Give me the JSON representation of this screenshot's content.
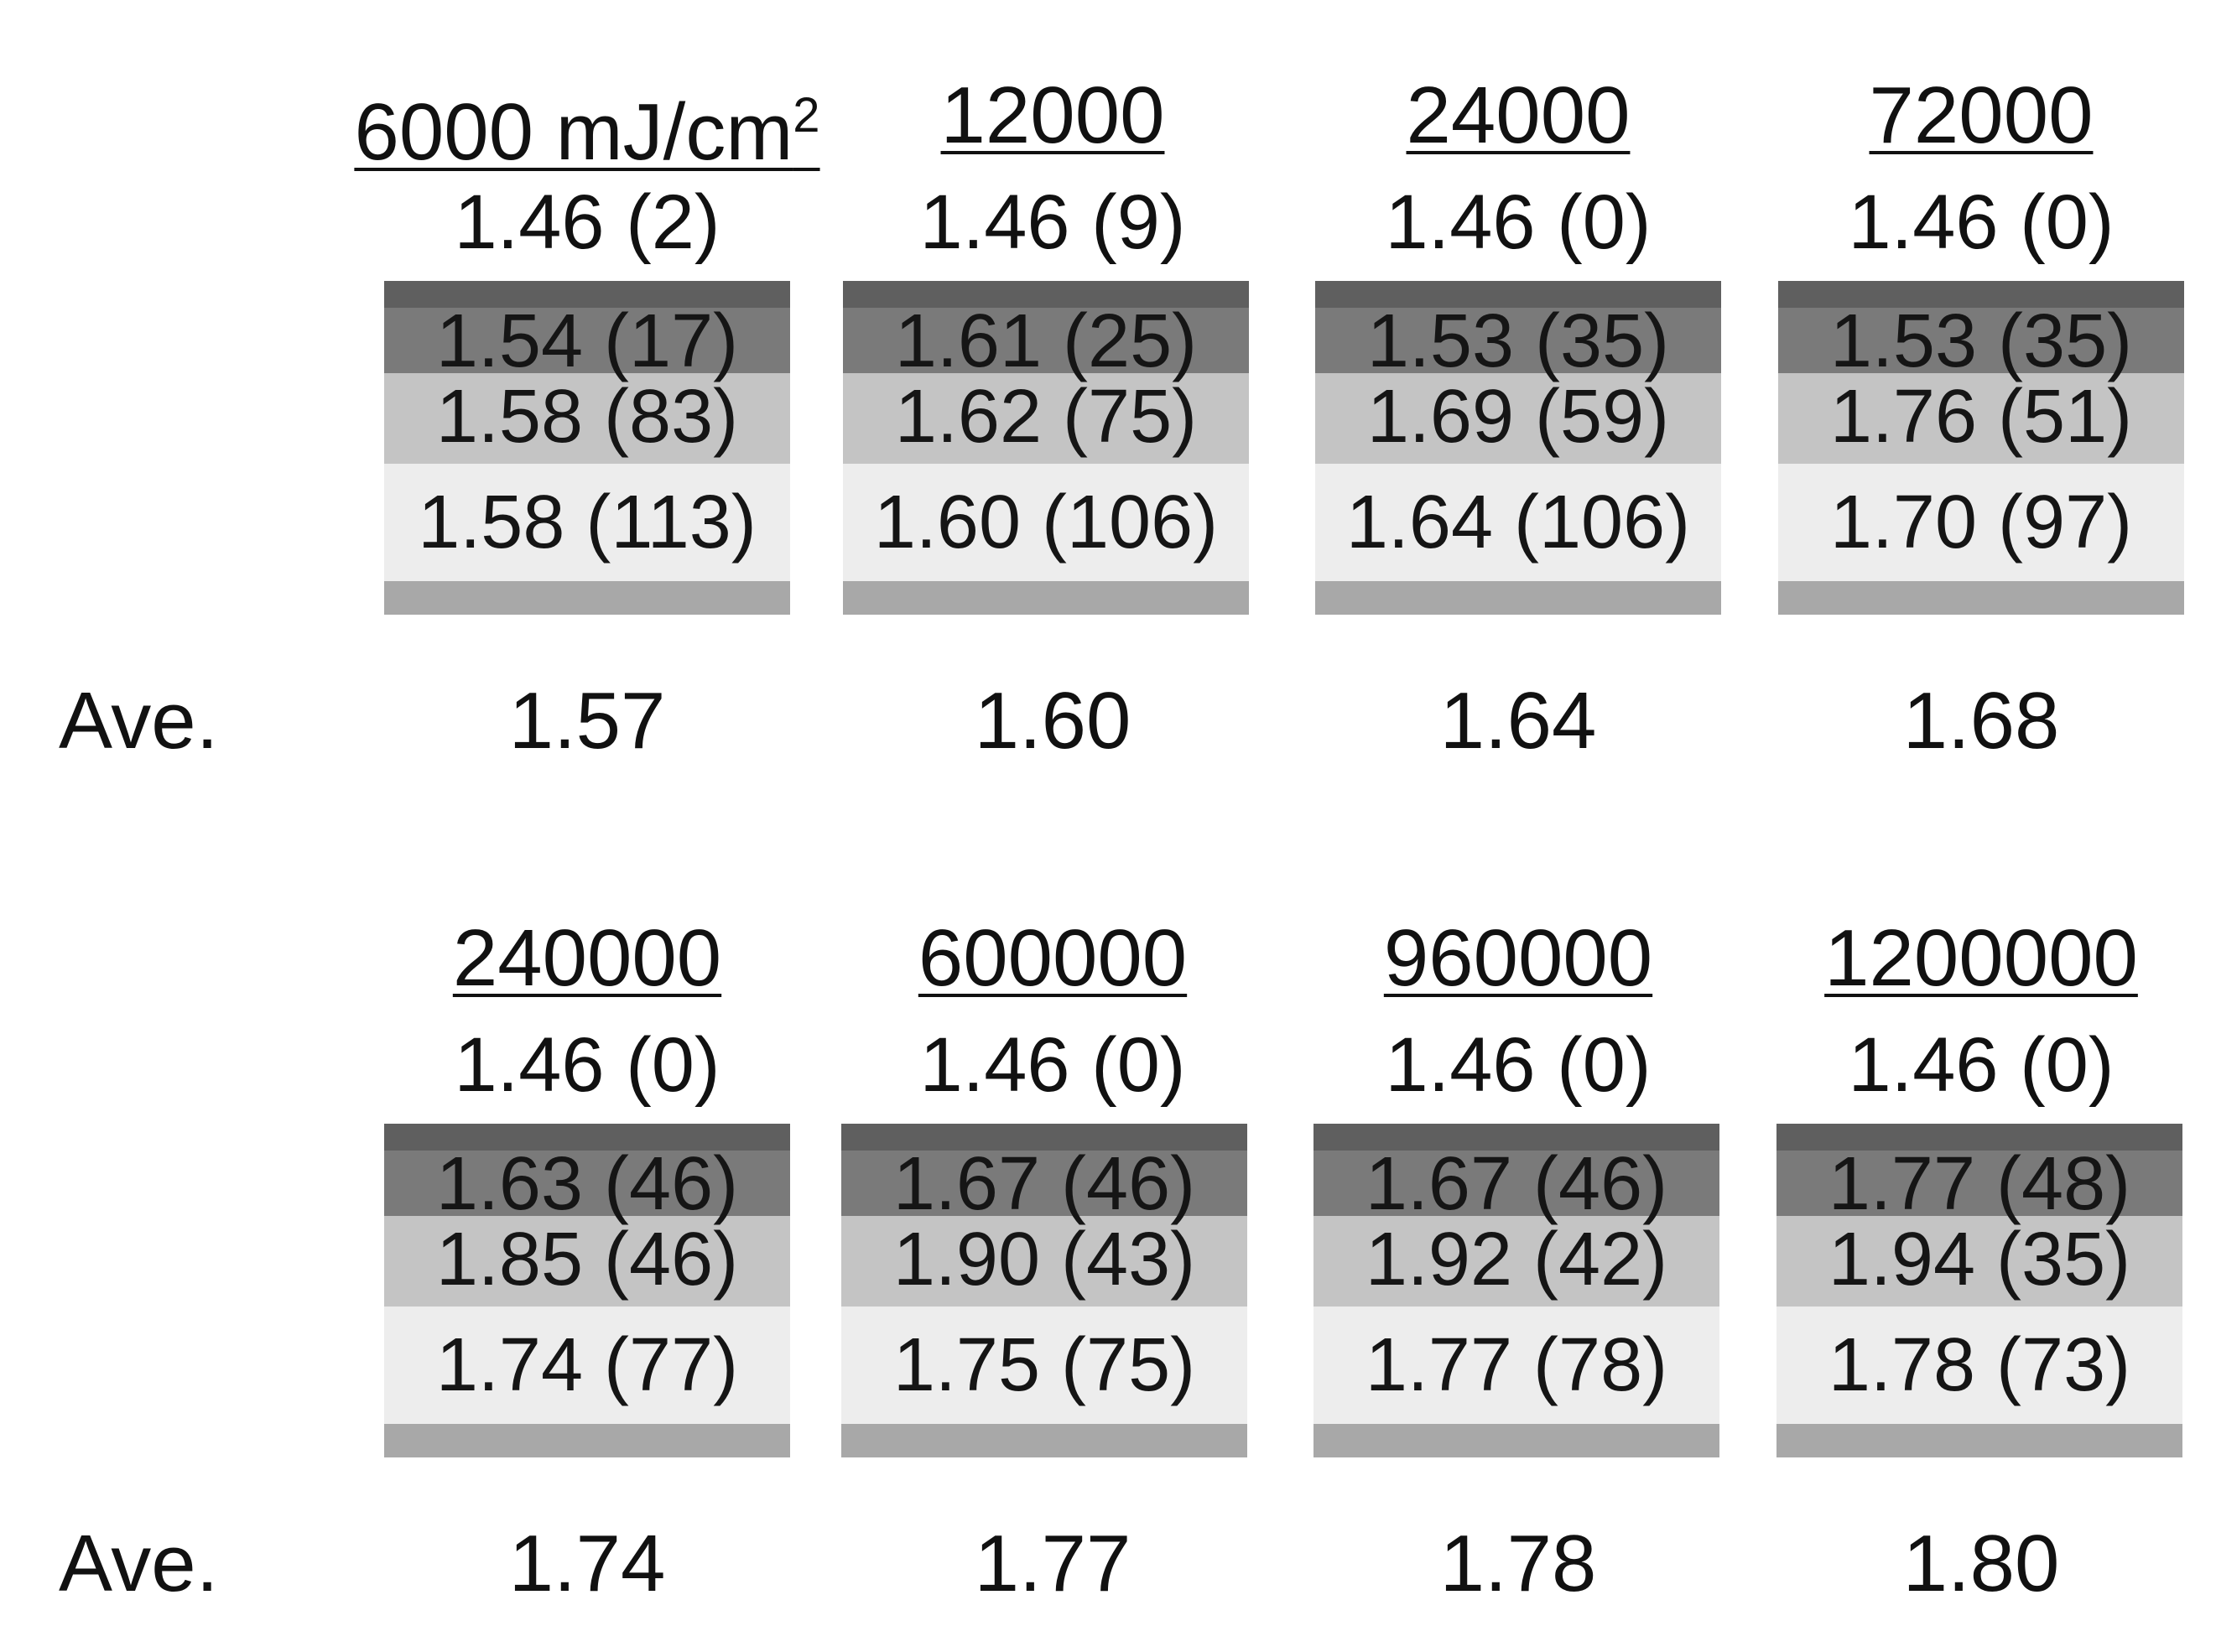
{
  "groups": [
    {
      "ave_label": "Ave.",
      "columns": [
        {
          "dose": "6000 mJ/cm",
          "dose_sup": "2",
          "top": "1.46 (2)",
          "layer1": "1.54 (17)",
          "layer2": "1.58 (83)",
          "layer3": "1.58 (113)",
          "ave": "1.57"
        },
        {
          "dose": "12000",
          "dose_sup": "",
          "top": "1.46 (9)",
          "layer1": "1.61 (25)",
          "layer2": "1.62 (75)",
          "layer3": "1.60 (106)",
          "ave": "1.60"
        },
        {
          "dose": "24000",
          "dose_sup": "",
          "top": "1.46 (0)",
          "layer1": "1.53 (35)",
          "layer2": "1.69 (59)",
          "layer3": "1.64 (106)",
          "ave": "1.64"
        },
        {
          "dose": "72000",
          "dose_sup": "",
          "top": "1.46 (0)",
          "layer1": "1.53 (35)",
          "layer2": "1.76 (51)",
          "layer3": "1.70 (97)",
          "ave": "1.68"
        }
      ]
    },
    {
      "ave_label": "Ave.",
      "columns": [
        {
          "dose": "240000",
          "dose_sup": "",
          "top": "1.46 (0)",
          "layer1": "1.63 (46)",
          "layer2": "1.85 (46)",
          "layer3": "1.74 (77)",
          "ave": "1.74"
        },
        {
          "dose": "600000",
          "dose_sup": "",
          "top": "1.46 (0)",
          "layer1": "1.67 (46)",
          "layer2": "1.90 (43)",
          "layer3": "1.75 (75)",
          "ave": "1.77"
        },
        {
          "dose": "960000",
          "dose_sup": "",
          "top": "1.46 (0)",
          "layer1": "1.67 (46)",
          "layer2": "1.92 (42)",
          "layer3": "1.77 (78)",
          "ave": "1.78"
        },
        {
          "dose": "1200000",
          "dose_sup": "",
          "top": "1.46 (0)",
          "layer1": "1.77 (48)",
          "layer2": "1.94 (35)",
          "layer3": "1.78 (73)",
          "ave": "1.80"
        }
      ]
    }
  ]
}
